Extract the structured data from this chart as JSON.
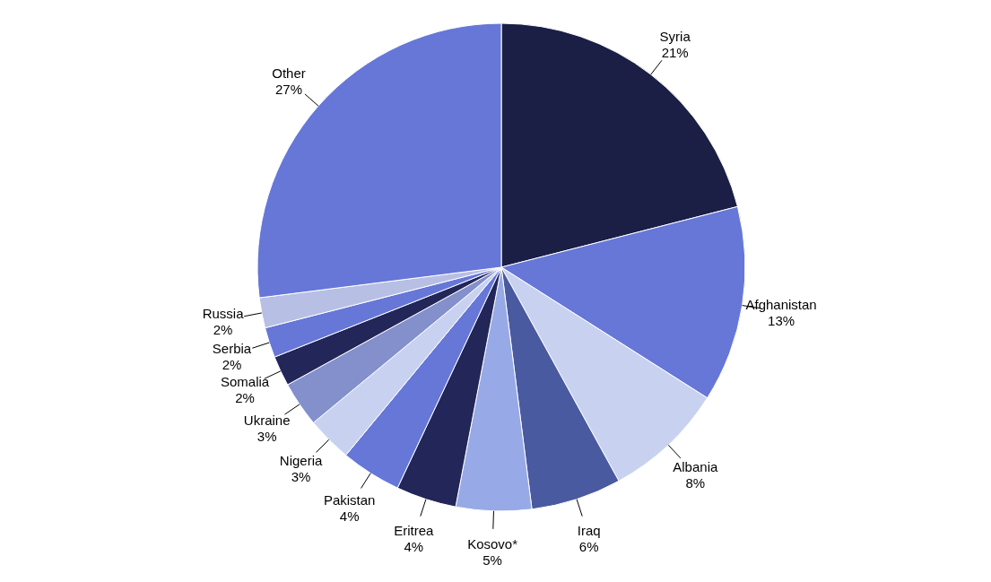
{
  "chart_data": {
    "type": "pie",
    "categories": [
      "Syria",
      "Afghanistan",
      "Albania",
      "Iraq",
      "Kosovo*",
      "Eritrea",
      "Pakistan",
      "Nigeria",
      "Ukraine",
      "Somalia",
      "Serbia",
      "Russia",
      "Other"
    ],
    "values": [
      21,
      13,
      8,
      6,
      5,
      4,
      4,
      3,
      3,
      2,
      2,
      2,
      27
    ],
    "value_labels": [
      "21%",
      "13%",
      "8%",
      "6%",
      "5%",
      "4%",
      "4%",
      "3%",
      "3%",
      "2%",
      "2%",
      "2%",
      "27%"
    ],
    "colors": [
      "#1b1e45",
      "#6677d8",
      "#c8d2f0",
      "#4a5aa0",
      "#97a9e6",
      "#222659",
      "#6677d8",
      "#c8d2f0",
      "#8390cc",
      "#222659",
      "#6677d8",
      "#b8bfe4",
      "#6677d8"
    ]
  }
}
